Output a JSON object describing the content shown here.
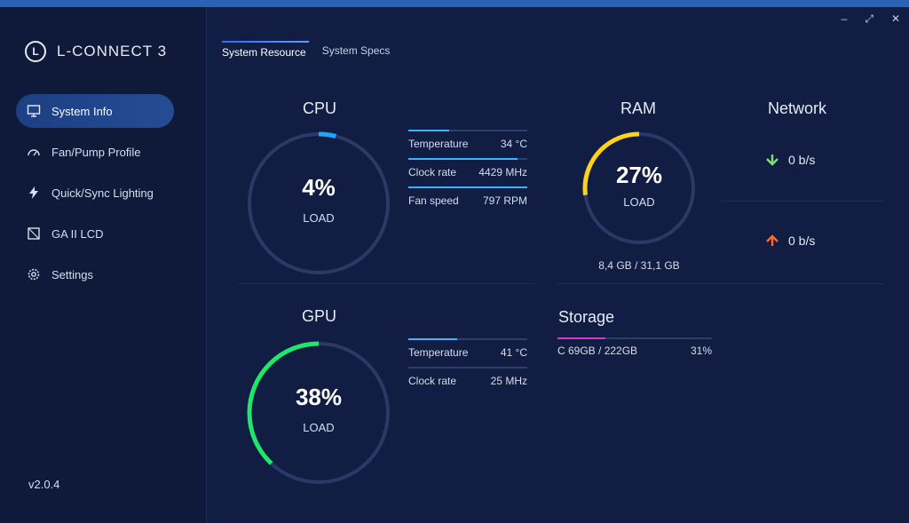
{
  "app": {
    "name": "L-CONNECT 3",
    "version": "v2.0.4"
  },
  "sidebar": {
    "items": [
      {
        "label": "System Info",
        "icon": "monitor-icon"
      },
      {
        "label": "Fan/Pump Profile",
        "icon": "gauge-icon"
      },
      {
        "label": "Quick/Sync Lighting",
        "icon": "lightning-icon"
      },
      {
        "label": "GA II LCD",
        "icon": "lcd-icon"
      },
      {
        "label": "Settings",
        "icon": "gear-icon"
      }
    ]
  },
  "tabs": [
    {
      "label": "System Resource"
    },
    {
      "label": "System Specs"
    }
  ],
  "window_controls": {
    "minimize": "–",
    "restore": "⤢",
    "close": "✕"
  },
  "cpu": {
    "title": "CPU",
    "load_pct": 4,
    "pct_label": "4%",
    "load_label": "LOAD",
    "accent": "#19a7ff",
    "stats": [
      {
        "label": "Temperature",
        "value": "34 °C",
        "fill": 0.34
      },
      {
        "label": "Clock rate",
        "value": "4429 MHz",
        "fill": 0.92
      },
      {
        "label": "Fan speed",
        "value": "797 RPM",
        "fill": 1.0
      }
    ]
  },
  "gpu": {
    "title": "GPU",
    "load_pct": 38,
    "pct_label": "38%",
    "load_label": "LOAD",
    "accent": "#1ee86a",
    "stats": [
      {
        "label": "Temperature",
        "value": "41 °C",
        "fill": 0.41
      },
      {
        "label": "Clock rate",
        "value": "25 MHz",
        "fill": 0.0
      }
    ]
  },
  "ram": {
    "title": "RAM",
    "load_pct": 27,
    "pct_label": "27%",
    "load_label": "LOAD",
    "accent": "#ffd21a",
    "memory": "8,4 GB / 31,1 GB"
  },
  "network": {
    "title": "Network",
    "download": "0 b/s",
    "upload": "0 b/s",
    "download_color": "#7be36c",
    "upload_color": "#ff6a2a"
  },
  "storage": {
    "title": "Storage",
    "drive": "C 69GB / 222GB",
    "pct_label": "31%",
    "fill": 0.31,
    "accent": "#d63ad0"
  }
}
